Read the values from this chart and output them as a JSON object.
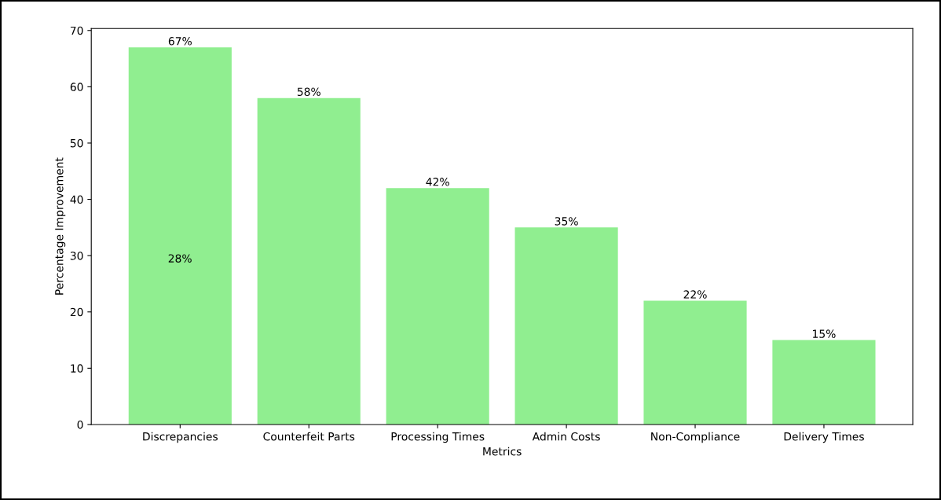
{
  "chart_data": {
    "type": "bar",
    "xlabel": "Metrics",
    "ylabel": "Percentage Improvement",
    "categories": [
      "Discrepancies",
      "Counterfeit Parts",
      "Processing Times",
      "Admin Costs",
      "Non-Compliance",
      "Delivery Times"
    ],
    "values": [
      67,
      58,
      42,
      35,
      22,
      15
    ],
    "value_labels": [
      "67%",
      "58%",
      "42%",
      "35%",
      "22%",
      "15%"
    ],
    "color": "#90ee90",
    "ylim": [
      0,
      70.35
    ],
    "yticks": [
      0,
      10,
      20,
      30,
      40,
      50,
      60,
      70
    ],
    "annotations": [
      "28%"
    ],
    "grid": false
  }
}
